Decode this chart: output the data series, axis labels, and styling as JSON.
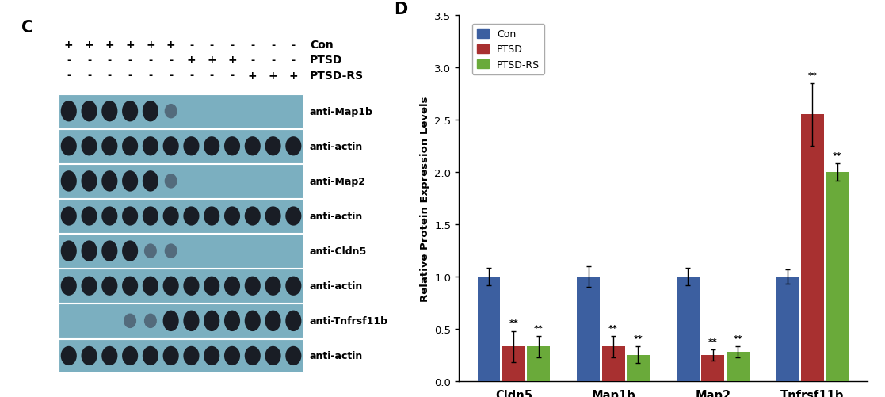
{
  "panel_label_C": "C",
  "panel_label_D": "D",
  "blot_bg_color": "#7bafc0",
  "blot_band_color": "#1a1a2a",
  "sample_labels": [
    "Con",
    "PTSD",
    "PTSD-RS"
  ],
  "con_pattern": [
    "+",
    "+",
    "+",
    "+",
    "+",
    "+",
    "-",
    "-",
    "-",
    "-",
    "-",
    "-"
  ],
  "ptsd_pattern": [
    "-",
    "-",
    "-",
    "-",
    "-",
    "-",
    "+",
    "+",
    "+",
    "-",
    "-",
    "-"
  ],
  "ptsdrs_pattern": [
    "-",
    "-",
    "-",
    "-",
    "-",
    "-",
    "-",
    "-",
    "-",
    "+",
    "+",
    "+"
  ],
  "blot_rows": [
    {
      "label": "anti-Map1b",
      "bands": [
        1,
        1,
        1,
        1,
        1,
        1,
        0,
        0,
        0,
        0,
        0,
        0
      ],
      "strong": [
        1,
        1,
        1,
        1,
        1,
        0,
        0,
        0,
        0,
        0,
        0,
        0
      ]
    },
    {
      "label": "anti-actin",
      "bands": [
        1,
        1,
        1,
        1,
        1,
        1,
        1,
        1,
        1,
        1,
        1,
        1
      ],
      "strong": [
        1,
        1,
        1,
        1,
        1,
        1,
        1,
        1,
        1,
        1,
        1,
        1
      ]
    },
    {
      "label": "anti-Map2",
      "bands": [
        1,
        1,
        1,
        1,
        1,
        1,
        0,
        0,
        0,
        0,
        0,
        0
      ],
      "strong": [
        1,
        1,
        1,
        1,
        1,
        0,
        0,
        0,
        0,
        0,
        0,
        0
      ]
    },
    {
      "label": "anti-actin",
      "bands": [
        1,
        1,
        1,
        1,
        1,
        1,
        1,
        1,
        1,
        1,
        1,
        1
      ],
      "strong": [
        1,
        1,
        1,
        1,
        1,
        1,
        1,
        1,
        1,
        1,
        1,
        1
      ]
    },
    {
      "label": "anti-Cldn5",
      "bands": [
        1,
        1,
        1,
        1,
        1,
        1,
        0,
        0,
        0,
        0,
        0,
        0
      ],
      "strong": [
        1,
        1,
        1,
        1,
        0,
        0,
        0,
        0,
        0,
        0,
        0,
        0
      ]
    },
    {
      "label": "anti-actin",
      "bands": [
        1,
        1,
        1,
        1,
        1,
        1,
        1,
        1,
        1,
        1,
        1,
        1
      ],
      "strong": [
        1,
        1,
        1,
        1,
        1,
        1,
        1,
        1,
        1,
        1,
        1,
        1
      ]
    },
    {
      "label": "anti-Tnfrsf11b",
      "bands": [
        0,
        0,
        0,
        1,
        1,
        1,
        1,
        1,
        1,
        1,
        1,
        1
      ],
      "strong": [
        0,
        0,
        0,
        0,
        0,
        1,
        1,
        1,
        1,
        1,
        1,
        1
      ]
    },
    {
      "label": "anti-actin",
      "bands": [
        1,
        1,
        1,
        1,
        1,
        1,
        1,
        1,
        1,
        1,
        1,
        1
      ],
      "strong": [
        1,
        1,
        1,
        1,
        1,
        1,
        1,
        1,
        1,
        1,
        1,
        1
      ]
    }
  ],
  "categories": [
    "Cldn5",
    "Map1b",
    "Map2",
    "Tnfrsf11b"
  ],
  "con_values": [
    1.0,
    1.0,
    1.0,
    1.0
  ],
  "ptsd_values": [
    0.33,
    0.33,
    0.25,
    2.55
  ],
  "ptsdrs_values": [
    0.33,
    0.25,
    0.28,
    2.0
  ],
  "con_err": [
    0.08,
    0.1,
    0.08,
    0.07
  ],
  "ptsd_err": [
    0.15,
    0.1,
    0.05,
    0.3
  ],
  "ptsdrs_err": [
    0.1,
    0.08,
    0.05,
    0.08
  ],
  "con_color": "#3c5fa0",
  "ptsd_color": "#a83030",
  "ptsdrs_color": "#6aaa3a",
  "ylabel": "Relative Protein Expression Levels",
  "ylim": [
    0,
    3.5
  ],
  "yticks": [
    0,
    0.5,
    1.0,
    1.5,
    2.0,
    2.5,
    3.0,
    3.5
  ]
}
